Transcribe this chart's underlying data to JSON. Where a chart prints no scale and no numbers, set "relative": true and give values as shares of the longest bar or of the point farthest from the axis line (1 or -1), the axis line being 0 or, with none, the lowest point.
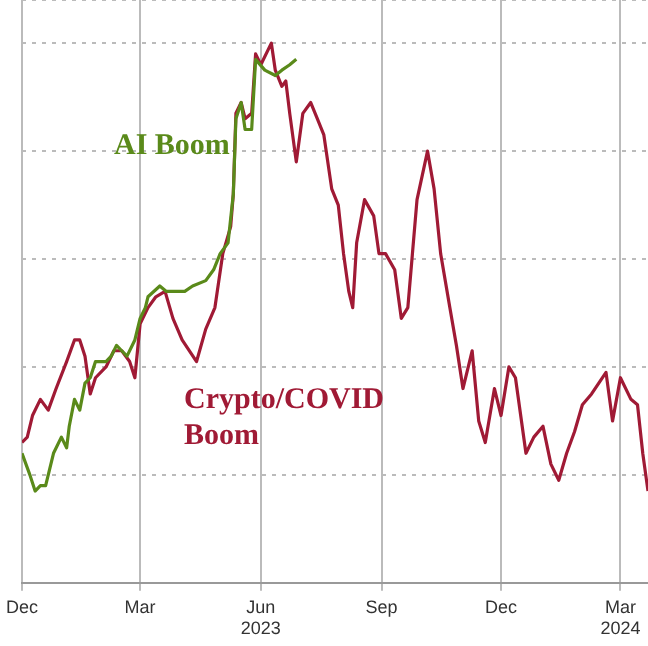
{
  "chart_data": {
    "type": "line",
    "relative": true,
    "grid": true,
    "legend": false,
    "marker": "none",
    "line_style": "solid",
    "xlim": [
      "2022-12-15",
      "2024-04-05"
    ],
    "xticks": [
      {
        "value": "2022-12-15",
        "label": "Dec"
      },
      {
        "value": "2023-03-15",
        "label": "Mar"
      },
      {
        "value": "2023-06-15",
        "label": "Jun\n2023"
      },
      {
        "value": "2023-09-15",
        "label": "Sep"
      },
      {
        "value": "2023-12-15",
        "label": "Dec"
      },
      {
        "value": "2024-03-15",
        "label": "Mar\n2024"
      }
    ],
    "series": [
      {
        "name": "AI Boom",
        "color": "#5a8a1a",
        "x": [
          "2022-12-15",
          "2022-12-21",
          "2022-12-25",
          "2022-12-29",
          "2023-01-02",
          "2023-01-08",
          "2023-01-14",
          "2023-01-18",
          "2023-01-20",
          "2023-01-24",
          "2023-01-28",
          "2023-02-01",
          "2023-02-05",
          "2023-02-09",
          "2023-02-13",
          "2023-02-17",
          "2023-02-21",
          "2023-02-25",
          "2023-03-01",
          "2023-03-05",
          "2023-03-11",
          "2023-03-15",
          "2023-03-19",
          "2023-03-21",
          "2023-03-30",
          "2023-04-04",
          "2023-04-13",
          "2023-04-18",
          "2023-04-24",
          "2023-05-04",
          "2023-05-10",
          "2023-05-15",
          "2023-05-21",
          "2023-05-25",
          "2023-05-27",
          "2023-05-31",
          "2023-06-03",
          "2023-06-08",
          "2023-06-11",
          "2023-06-18",
          "2023-06-26",
          "2023-07-01",
          "2023-07-07",
          "2023-07-12"
        ],
        "values": [
          0.24,
          0.2,
          0.17,
          0.18,
          0.18,
          0.24,
          0.27,
          0.25,
          0.29,
          0.34,
          0.32,
          0.37,
          0.38,
          0.41,
          0.41,
          0.41,
          0.42,
          0.44,
          0.43,
          0.42,
          0.45,
          0.49,
          0.51,
          0.53,
          0.55,
          0.54,
          0.54,
          0.54,
          0.55,
          0.56,
          0.58,
          0.61,
          0.63,
          0.72,
          0.86,
          0.89,
          0.84,
          0.84,
          0.97,
          0.95,
          0.94,
          0.95,
          0.96,
          0.97
        ]
      },
      {
        "name": "Crypto/COVID Boom",
        "color": "#a01a35",
        "x": [
          "2022-12-15",
          "2022-12-19",
          "2022-12-23",
          "2022-12-29",
          "2023-01-04",
          "2023-01-10",
          "2023-01-18",
          "2023-01-24",
          "2023-01-28",
          "2023-02-01",
          "2023-02-05",
          "2023-02-09",
          "2023-02-17",
          "2023-02-23",
          "2023-03-01",
          "2023-03-07",
          "2023-03-11",
          "2023-03-15",
          "2023-03-21",
          "2023-03-27",
          "2023-04-03",
          "2023-04-09",
          "2023-04-16",
          "2023-04-27",
          "2023-05-04",
          "2023-05-11",
          "2023-05-17",
          "2023-05-23",
          "2023-05-25",
          "2023-05-27",
          "2023-05-31",
          "2023-06-03",
          "2023-06-08",
          "2023-06-11",
          "2023-06-15",
          "2023-06-23",
          "2023-06-26",
          "2023-07-01",
          "2023-07-04",
          "2023-07-07",
          "2023-07-12",
          "2023-07-17",
          "2023-07-23",
          "2023-07-28",
          "2023-08-02",
          "2023-08-08",
          "2023-08-13",
          "2023-08-17",
          "2023-08-21",
          "2023-08-24",
          "2023-08-27",
          "2023-09-02",
          "2023-09-09",
          "2023-09-13",
          "2023-09-18",
          "2023-09-25",
          "2023-09-30",
          "2023-10-05",
          "2023-10-12",
          "2023-10-20",
          "2023-10-25",
          "2023-10-30",
          "2023-11-06",
          "2023-11-11",
          "2023-11-16",
          "2023-11-23",
          "2023-11-28",
          "2023-12-03",
          "2023-12-10",
          "2023-12-15",
          "2023-12-21",
          "2023-12-26",
          "2024-01-03",
          "2024-01-09",
          "2024-01-16",
          "2024-01-22",
          "2024-01-28",
          "2024-02-03",
          "2024-02-09",
          "2024-02-15",
          "2024-02-22",
          "2024-03-04",
          "2024-03-09",
          "2024-03-15",
          "2024-03-23",
          "2024-03-28",
          "2024-04-01",
          "2024-04-05"
        ],
        "values": [
          0.26,
          0.27,
          0.31,
          0.34,
          0.32,
          0.36,
          0.41,
          0.45,
          0.45,
          0.42,
          0.35,
          0.38,
          0.4,
          0.43,
          0.43,
          0.41,
          0.38,
          0.48,
          0.51,
          0.53,
          0.54,
          0.49,
          0.45,
          0.41,
          0.47,
          0.51,
          0.61,
          0.66,
          0.72,
          0.87,
          0.89,
          0.86,
          0.87,
          0.98,
          0.96,
          1,
          0.95,
          0.92,
          0.93,
          0.87,
          0.78,
          0.87,
          0.89,
          0.86,
          0.83,
          0.73,
          0.7,
          0.61,
          0.54,
          0.51,
          0.63,
          0.71,
          0.68,
          0.61,
          0.61,
          0.58,
          0.49,
          0.51,
          0.71,
          0.8,
          0.73,
          0.61,
          0.51,
          0.44,
          0.36,
          0.43,
          0.3,
          0.26,
          0.36,
          0.31,
          0.4,
          0.38,
          0.24,
          0.27,
          0.29,
          0.22,
          0.19,
          0.24,
          0.28,
          0.33,
          0.35,
          0.39,
          0.3,
          0.38,
          0.34,
          0.33,
          0.24,
          0.17
        ]
      }
    ]
  }
}
